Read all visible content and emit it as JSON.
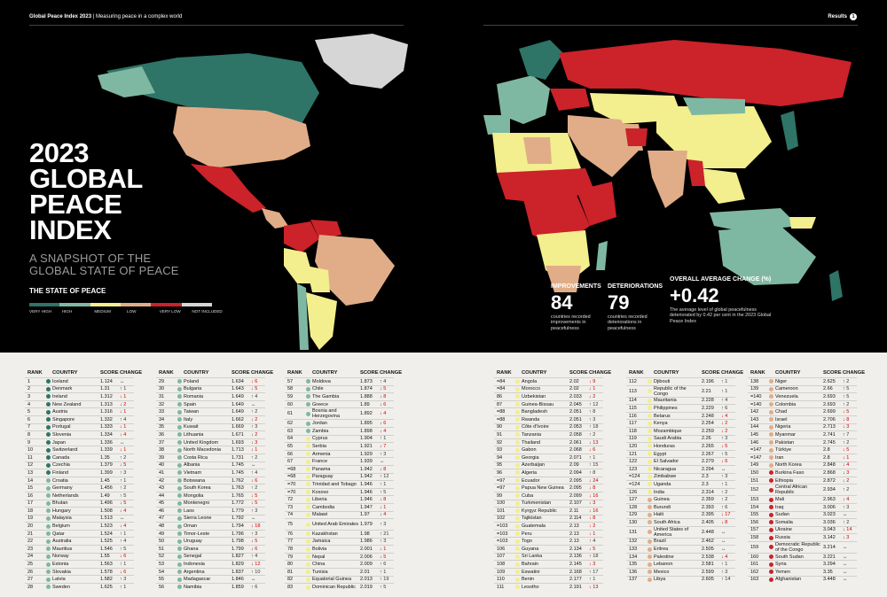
{
  "header": {
    "publication": "Global Peace Index 2023",
    "section": "Measuring peace in a complex world",
    "results_label": "Results",
    "page_num": "1"
  },
  "title_lines": [
    "2023",
    "GLOBAL",
    "PEACE",
    "INDEX"
  ],
  "subtitle_lines": [
    "A SNAPSHOT OF THE",
    "GLOBAL STATE OF PEACE"
  ],
  "state_heading": "THE STATE OF PEACE",
  "legend": [
    {
      "label": "VERY HIGH",
      "color": "#2e7467"
    },
    {
      "label": "HIGH",
      "color": "#7fb8a2"
    },
    {
      "label": "MEDIUM",
      "color": "#f3ee8e"
    },
    {
      "label": "LOW",
      "color": "#e0ad88"
    },
    {
      "label": "VERY LOW",
      "color": "#cc2229"
    },
    {
      "label": "NOT INCLUDED",
      "color": "#d6d6d6"
    }
  ],
  "stats": [
    {
      "label": "IMPROVEMENTS",
      "value": "84",
      "desc": "countries recorded improvements in peacefulness"
    },
    {
      "label": "DETERIORATIONS",
      "value": "79",
      "desc": "countries recorded deteriorations in peacefulness"
    },
    {
      "label": "OVERALL AVERAGE CHANGE (%)",
      "value": "+0.42",
      "desc": "The average level of global peacefulness deteriorated by 0.42 per cent in the 2023 Global Peace Index"
    }
  ],
  "table_headers": {
    "rank": "RANK",
    "country": "COUNTRY",
    "score": "SCORE",
    "change": "CHANGE"
  },
  "table_columns": [
    [
      [
        "1",
        "Iceland",
        "1.124",
        "↔",
        1
      ],
      [
        "2",
        "Denmark",
        "1.31",
        "↑ 1",
        1
      ],
      [
        "3",
        "Ireland",
        "1.312",
        "↓ 1",
        1
      ],
      [
        "4",
        "New Zealand",
        "1.313",
        "↓ 2",
        1
      ],
      [
        "5",
        "Austria",
        "1.316",
        "↓ 1",
        1
      ],
      [
        "6",
        "Singapore",
        "1.332",
        "↑ 4",
        1
      ],
      [
        "7",
        "Portugal",
        "1.333",
        "↓ 1",
        1
      ],
      [
        "8",
        "Slovenia",
        "1.334",
        "↓ 4",
        1
      ],
      [
        "9",
        "Japan",
        "1.336",
        "↔",
        1
      ],
      [
        "10",
        "Switzerland",
        "1.339",
        "↓ 1",
        1
      ],
      [
        "11",
        "Canada",
        "1.35",
        "↑ 2",
        1
      ],
      [
        "12",
        "Czechia",
        "1.379",
        "↓ 5",
        1
      ],
      [
        "13",
        "Finland",
        "1.399",
        "↑ 3",
        1
      ],
      [
        "14",
        "Croatia",
        "1.45",
        "↑ 1",
        1
      ],
      [
        "15",
        "Germany",
        "1.456",
        "↑ 2",
        0
      ],
      [
        "16",
        "Netherlands",
        "1.49",
        "↑ 5",
        0
      ],
      [
        "17",
        "Bhutan",
        "1.496",
        "↓ 5",
        0
      ],
      [
        "18",
        "Hungary",
        "1.508",
        "↓ 4",
        0
      ],
      [
        "19",
        "Malaysia",
        "1.513",
        "↔",
        0
      ],
      [
        "20",
        "Belgium",
        "1.523",
        "↓ 4",
        0
      ],
      [
        "21",
        "Qatar",
        "1.524",
        "↑ 1",
        0
      ],
      [
        "22",
        "Australia",
        "1.525",
        "↑ 4",
        0
      ],
      [
        "23",
        "Mauritius",
        "1.546",
        "↑ 5",
        0
      ],
      [
        "24",
        "Norway",
        "1.55",
        "↓ 6",
        0
      ],
      [
        "25",
        "Estonia",
        "1.563",
        "↑ 1",
        0
      ],
      [
        "26",
        "Slovakia",
        "1.578",
        "↓ 6",
        0
      ],
      [
        "27",
        "Latvia",
        "1.582",
        "↑ 3",
        0
      ],
      [
        "28",
        "Sweden",
        "1.625",
        "↑ 1",
        0
      ]
    ],
    [
      [
        "29",
        "Poland",
        "1.634",
        "↓ 6",
        0
      ],
      [
        "30",
        "Bulgaria",
        "1.643",
        "↓ 5",
        0
      ],
      [
        "31",
        "Romania",
        "1.649",
        "↑ 4",
        0
      ],
      [
        "32",
        "Spain",
        "1.649",
        "↔",
        0
      ],
      [
        "33",
        "Taiwan",
        "1.649",
        "↑ 2",
        0
      ],
      [
        "34",
        "Italy",
        "1.662",
        "↓ 2",
        0
      ],
      [
        "35",
        "Kuwait",
        "1.669",
        "↑ 3",
        0
      ],
      [
        "36",
        "Lithuania",
        "1.671",
        "↓ 2",
        0
      ],
      [
        "37",
        "United Kingdom",
        "1.693",
        "↓ 3",
        0
      ],
      [
        "38",
        "North Macedonia",
        "1.713",
        "↓ 1",
        0
      ],
      [
        "39",
        "Costa Rica",
        "1.731",
        "↑ 2",
        0
      ],
      [
        "40",
        "Albania",
        "1.745",
        "↔",
        0
      ],
      [
        "41",
        "Vietnam",
        "1.745",
        "↑ 4",
        0
      ],
      [
        "42",
        "Botswana",
        "1.762",
        "↓ 6",
        0
      ],
      [
        "43",
        "South Korea",
        "1.763",
        "↑ 2",
        0
      ],
      [
        "44",
        "Mongolia",
        "1.765",
        "↓ 5",
        0
      ],
      [
        "45",
        "Montenegro",
        "1.772",
        "↓ 5",
        0
      ],
      [
        "46",
        "Laos",
        "1.779",
        "↑ 3",
        0
      ],
      [
        "47",
        "Sierra Leone",
        "1.792",
        "↔",
        0
      ],
      [
        "48",
        "Oman",
        "1.794",
        "↓ 18",
        0
      ],
      [
        "49",
        "Timor-Leste",
        "1.796",
        "↑ 3",
        0
      ],
      [
        "50",
        "Uruguay",
        "1.798",
        "↓ 5",
        0
      ],
      [
        "51",
        "Ghana",
        "1.799",
        "↓ 6",
        0
      ],
      [
        "52",
        "Senegal",
        "1.827",
        "↑ 4",
        0
      ],
      [
        "53",
        "Indonesia",
        "1.829",
        "↓ 12",
        0
      ],
      [
        "54",
        "Argentina",
        "1.837",
        "↑ 10",
        0
      ],
      [
        "55",
        "Madagascar",
        "1.846",
        "↔",
        0
      ],
      [
        "56",
        "Namibia",
        "1.859",
        "↑ 6",
        0
      ]
    ],
    [
      [
        "57",
        "Moldova",
        "1.873",
        "↑ 4",
        0
      ],
      [
        "58",
        "Chile",
        "1.874",
        "↓ 5",
        0
      ],
      [
        "59",
        "The Gambia",
        "1.888",
        "↓ 8",
        0
      ],
      [
        "60",
        "Greece",
        "1.89",
        "↓ 6",
        0
      ],
      [
        "61",
        "Bosnia and Herzegovina",
        "1.892",
        "↓ 4",
        0
      ],
      [
        "62",
        "Jordan",
        "1.895",
        "↓ 6",
        0
      ],
      [
        "63",
        "Zambia",
        "1.898",
        "↓ 4",
        0
      ],
      [
        "64",
        "Cyprus",
        "1.904",
        "↑ 1",
        0
      ],
      [
        "65",
        "Serbia",
        "1.921",
        "↓ 7",
        0
      ],
      [
        "66",
        "Armenia",
        "1.929",
        "↑ 3",
        0
      ],
      [
        "67",
        "France",
        "1.939",
        "↔",
        0
      ],
      [
        "=68",
        "Panama",
        "1.942",
        "↓ 8",
        0
      ],
      [
        "=68",
        "Paraguay",
        "1.942",
        "↑ 12",
        0
      ],
      [
        "=70",
        "Trinidad and Tobago",
        "1.946",
        "↑ 1",
        0
      ],
      [
        "=70",
        "Kosovo",
        "1.946",
        "↑ 5",
        0
      ],
      [
        "72",
        "Liberia",
        "1.946",
        "↓ 8",
        0
      ],
      [
        "73",
        "Cambodia",
        "1.947",
        "↓ 1",
        0
      ],
      [
        "74",
        "Malawi",
        "1.97",
        "↓ 4",
        0
      ],
      [
        "75",
        "United Arab Emirates",
        "1.979",
        "↑ 3",
        0
      ],
      [
        "76",
        "Kazakhstan",
        "1.98",
        "↑ 21",
        0
      ],
      [
        "77",
        "Jamaica",
        "1.986",
        "↑ 3",
        0
      ],
      [
        "78",
        "Bolivia",
        "2.001",
        "↓ 1",
        0
      ],
      [
        "79",
        "Nepal",
        "2.006",
        "↓ 5",
        0
      ],
      [
        "80",
        "China",
        "2.009",
        "↑ 6",
        0
      ],
      [
        "81",
        "Tunisia",
        "2.01",
        "↑ 1",
        0
      ],
      [
        "82",
        "Equatorial Guinea",
        "2.013",
        "↑ 19",
        0
      ],
      [
        "83",
        "Dominican Republic",
        "2.019",
        "↑ 5",
        0
      ]
    ],
    [
      [
        "=84",
        "Angola",
        "2.02",
        "↓ 9",
        0
      ],
      [
        "=84",
        "Morocco",
        "2.02",
        "↓ 1",
        0
      ],
      [
        "86",
        "Uzbekistan",
        "2.033",
        "↓ 2",
        0
      ],
      [
        "87",
        "Guinea-Bissau",
        "2.045",
        "↑ 12",
        0
      ],
      [
        "=88",
        "Bangladesh",
        "2.051",
        "↑ 8",
        0
      ],
      [
        "=88",
        "Rwanda",
        "2.051",
        "↑ 3",
        0
      ],
      [
        "90",
        "Côte d'Ivoire",
        "2.053",
        "↑ 18",
        0
      ],
      [
        "91",
        "Tanzania",
        "2.058",
        "↑ 2",
        0
      ],
      [
        "92",
        "Thailand",
        "2.061",
        "↓ 13",
        0
      ],
      [
        "93",
        "Gabon",
        "2.068",
        "↓ 6",
        0
      ],
      [
        "94",
        "Georgia",
        "2.071",
        "↑ 1",
        0
      ],
      [
        "95",
        "Azerbaijan",
        "2.09",
        "↑ 15",
        0
      ],
      [
        "96",
        "Algeria",
        "2.094",
        "↑ 8",
        0
      ],
      [
        "=97",
        "Ecuador",
        "2.095",
        "↓ 24",
        0
      ],
      [
        "=97",
        "Papua New Guinea",
        "2.095",
        "↓ 8",
        0
      ],
      [
        "99",
        "Cuba",
        "2.099",
        "↓ 16",
        0
      ],
      [
        "100",
        "Turkmenistan",
        "2.107",
        "↓ 3",
        0
      ],
      [
        "101",
        "Kyrgyz Republic",
        "2.11",
        "↓ 16",
        0
      ],
      [
        "102",
        "Tajikistan",
        "2.114",
        "↓ 8",
        0
      ],
      [
        "=103",
        "Guatemala",
        "2.13",
        "↓ 2",
        0
      ],
      [
        "=103",
        "Peru",
        "2.13",
        "↓ 1",
        0
      ],
      [
        "=103",
        "Togo",
        "2.13",
        "↑ 4",
        0
      ],
      [
        "106",
        "Guyana",
        "2.134",
        "↓ 5",
        0
      ],
      [
        "107",
        "Sri Lanka",
        "2.136",
        "↑ 18",
        0
      ],
      [
        "108",
        "Bahrain",
        "2.145",
        "↓ 3",
        0
      ],
      [
        "109",
        "Eswatini",
        "2.168",
        "↑ 17",
        0
      ],
      [
        "110",
        "Benin",
        "2.177",
        "↑ 1",
        0
      ],
      [
        "111",
        "Lesotho",
        "2.191",
        "↓ 13",
        0
      ]
    ],
    [
      [
        "112",
        "Djibouti",
        "2.196",
        "↑ 1",
        0
      ],
      [
        "113",
        "Republic of the Congo",
        "2.21",
        "↑ 1",
        0
      ],
      [
        "114",
        "Mauritania",
        "2.228",
        "↑ 4",
        0
      ],
      [
        "115",
        "Philippines",
        "2.229",
        "↑ 6",
        0
      ],
      [
        "116",
        "Belarus",
        "2.248",
        "↓ 4",
        0
      ],
      [
        "117",
        "Kenya",
        "2.254",
        "↓ 2",
        0
      ],
      [
        "118",
        "Mozambique",
        "2.259",
        "↓ 2",
        0
      ],
      [
        "119",
        "Saudi Arabia",
        "2.26",
        "↑ 3",
        0
      ],
      [
        "120",
        "Honduras",
        "2.265",
        "↓ 5",
        0
      ],
      [
        "121",
        "Egypt",
        "2.267",
        "↑ 5",
        0
      ],
      [
        "122",
        "El Salvador",
        "2.279",
        "↓ 6",
        0
      ],
      [
        "123",
        "Nicaragua",
        "2.294",
        "↔",
        0
      ],
      [
        "=124",
        "Zimbabwe",
        "2.3",
        "↑ 3",
        0
      ],
      [
        "=124",
        "Uganda",
        "2.3",
        "↑ 1",
        0
      ],
      [
        "126",
        "India",
        "2.314",
        "↑ 2",
        0
      ],
      [
        "127",
        "Guinea",
        "2.359",
        "↑ 2",
        0
      ],
      [
        "128",
        "Burundi",
        "2.393",
        "↑ 6",
        0
      ],
      [
        "129",
        "Haiti",
        "2.395",
        "↓ 17",
        0
      ],
      [
        "130",
        "South Africa",
        "2.405",
        "↓ 8",
        0
      ],
      [
        "131",
        "United States of America",
        "2.448",
        "↔",
        0
      ],
      [
        "132",
        "Brazil",
        "2.462",
        "↔",
        0
      ],
      [
        "133",
        "Eritrea",
        "2.505",
        "↔",
        0
      ],
      [
        "134",
        "Palestine",
        "2.538",
        "↓ 4",
        0
      ],
      [
        "135",
        "Lebanon",
        "2.581",
        "↑ 1",
        0
      ],
      [
        "136",
        "Mexico",
        "2.599",
        "↑ 3",
        0
      ],
      [
        "137",
        "Libya",
        "2.605",
        "↑ 14",
        0
      ]
    ],
    [
      [
        "138",
        "Niger",
        "2.625",
        "↑ 2",
        0
      ],
      [
        "139",
        "Cameroon",
        "2.66",
        "↑ 5",
        0
      ],
      [
        "=140",
        "Venezuela",
        "2.693",
        "↑ 5",
        0
      ],
      [
        "=140",
        "Colombia",
        "2.693",
        "↑ 2",
        0
      ],
      [
        "142",
        "Chad",
        "2.699",
        "↓ 5",
        0
      ],
      [
        "143",
        "Israel",
        "2.706",
        "↓ 8",
        0
      ],
      [
        "144",
        "Nigeria",
        "2.713",
        "↓ 3",
        0
      ],
      [
        "145",
        "Myanmar",
        "2.741",
        "↑ 7",
        0
      ],
      [
        "146",
        "Pakistan",
        "2.745",
        "↑ 2",
        0
      ],
      [
        "=147",
        "Türkiye",
        "2.8",
        "↓ 5",
        0
      ],
      [
        "=147",
        "Iran",
        "2.8",
        "↓ 1",
        0
      ],
      [
        "149",
        "North Korea",
        "2.848",
        "↓ 4",
        0
      ],
      [
        "150",
        "Burkina Faso",
        "2.868",
        "↓ 3",
        0
      ],
      [
        "151",
        "Ethiopia",
        "2.872",
        "↓ 2",
        0
      ],
      [
        "152",
        "Central African Republic",
        "2.934",
        "↑ 2",
        0
      ],
      [
        "153",
        "Mali",
        "2.963",
        "↓ 4",
        0
      ],
      [
        "154",
        "Iraq",
        "3.006",
        "↑ 3",
        0
      ],
      [
        "155",
        "Sudan",
        "3.023",
        "↔",
        0
      ],
      [
        "156",
        "Somalia",
        "3.036",
        "↑ 2",
        0
      ],
      [
        "157",
        "Ukraine",
        "3.043",
        "↓ 14",
        0
      ],
      [
        "158",
        "Russia",
        "3.142",
        "↓ 3",
        0
      ],
      [
        "159",
        "Democratic Republic of the Congo",
        "3.214",
        "↔",
        0
      ],
      [
        "160",
        "South Sudan",
        "3.221",
        "↔",
        0
      ],
      [
        "161",
        "Syria",
        "3.294",
        "↔",
        0
      ],
      [
        "162",
        "Yemen",
        "3.35",
        "↔",
        0
      ],
      [
        "163",
        "Afghanistan",
        "3.448",
        "↔",
        0
      ]
    ]
  ]
}
